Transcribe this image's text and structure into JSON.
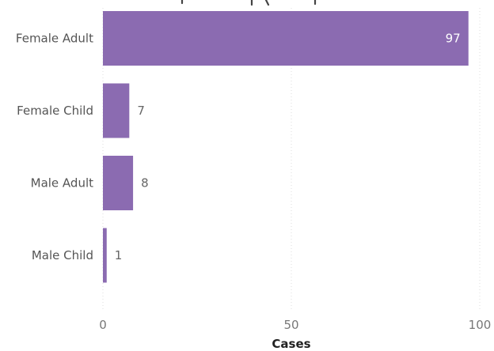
{
  "chart_data": {
    "type": "bar",
    "orientation": "horizontal",
    "categories": [
      "Female Adult",
      "Female Child",
      "Male Adult",
      "Male Child"
    ],
    "values": [
      97,
      7,
      8,
      1
    ],
    "xlabel": "Cases",
    "ylabel": "",
    "xlim": [
      0,
      100
    ],
    "xticks": [
      "0",
      "50",
      "100"
    ],
    "grid": true,
    "legend": "none",
    "bar_color": "#8B6BB1",
    "data_labels": [
      "97",
      "7",
      "8",
      "1"
    ]
  }
}
